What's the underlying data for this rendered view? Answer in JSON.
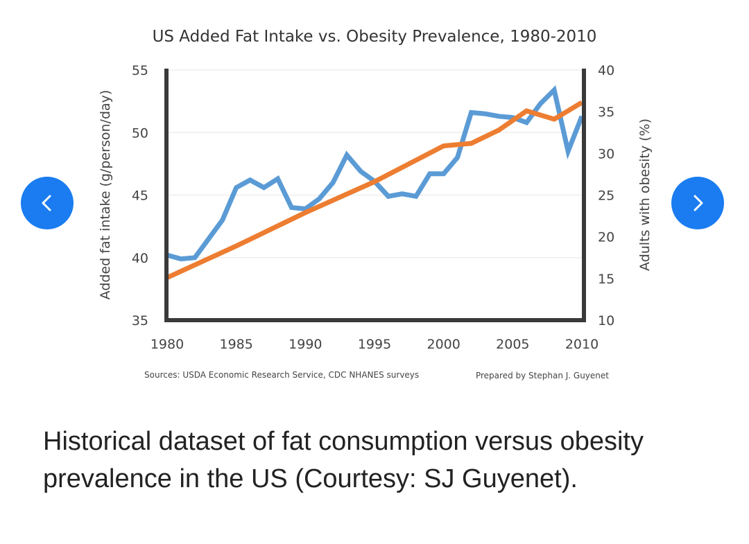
{
  "carousel": {
    "prev_icon": "chevron-left-icon",
    "next_icon": "chevron-right-icon",
    "accent": "#1a7cf0"
  },
  "caption": "Historical dataset of fat consumption versus obesity prevalence in the US (Courtesy: SJ Guyenet).",
  "chart_data": {
    "type": "line",
    "title": "US Added Fat Intake vs. Obesity Prevalence, 1980-2010",
    "xlabel": "",
    "ylabel": "Added fat intake (g/person/day)",
    "y2label": "Adults with obesity (%)",
    "xlim": [
      1980,
      2010
    ],
    "ylim": [
      35,
      55
    ],
    "y2lim": [
      10,
      40
    ],
    "xticks": [
      "1980",
      "1985",
      "1990",
      "1995",
      "2000",
      "2005",
      "2010"
    ],
    "yticks": [
      "35",
      "40",
      "45",
      "50",
      "55"
    ],
    "y2ticks": [
      "10",
      "15",
      "20",
      "25",
      "30",
      "35",
      "40"
    ],
    "grid": true,
    "legend": "none",
    "series": [
      {
        "name": "Added fat intake",
        "axis": "left",
        "color": "#5b9bd5",
        "x": [
          1980,
          1981,
          1982,
          1983,
          1984,
          1985,
          1986,
          1987,
          1988,
          1989,
          1990,
          1991,
          1992,
          1993,
          1994,
          1995,
          1996,
          1997,
          1998,
          1999,
          2000,
          2001,
          2002,
          2003,
          2004,
          2005,
          2006,
          2007,
          2008,
          2009,
          2010
        ],
        "values": [
          40.2,
          39.9,
          40.0,
          41.5,
          43.0,
          45.6,
          46.2,
          45.6,
          46.3,
          44.0,
          43.9,
          44.7,
          46.0,
          48.2,
          46.9,
          46.1,
          44.9,
          45.1,
          44.9,
          46.7,
          46.7,
          48.0,
          51.6,
          51.5,
          51.3,
          51.2,
          50.8,
          52.3,
          53.4,
          48.5,
          51.3
        ]
      },
      {
        "name": "Adults with obesity",
        "axis": "right",
        "color": "#ed7d31",
        "x": [
          1980,
          1985,
          1990,
          1995,
          2000,
          2002,
          2004,
          2006,
          2008,
          2010
        ],
        "values": [
          15.1,
          18.9,
          22.9,
          26.6,
          30.9,
          31.2,
          32.8,
          35.1,
          34.1,
          36.1
        ]
      }
    ],
    "sources": "Sources: USDA Economic Research Service, CDC NHANES surveys",
    "credit": "Prepared by Stephan J. Guyenet"
  }
}
